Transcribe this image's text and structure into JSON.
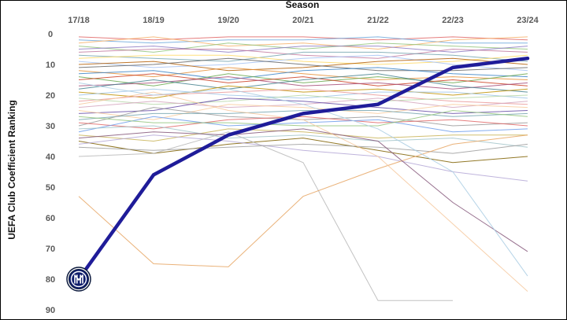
{
  "chart_data": {
    "type": "line",
    "title": "",
    "xlabel": "Season",
    "ylabel": "UEFA Club Coefficient Ranking",
    "x": [
      "17/18",
      "18/19",
      "19/20",
      "20/21",
      "21/22",
      "22/23",
      "23/24"
    ],
    "yticks": [
      0,
      10,
      20,
      30,
      40,
      50,
      60,
      70,
      80,
      90
    ],
    "ylim": [
      0,
      90
    ],
    "y_inverted": true,
    "x_axis_position": "top",
    "grid": false,
    "legend": "none",
    "highlight": {
      "values": [
        80,
        46,
        33,
        26,
        23,
        11,
        8
      ],
      "color": "#1f1c99",
      "marker": "inter-logo-icon"
    },
    "series": [
      {
        "values": [
          1,
          2,
          1,
          1,
          2,
          1,
          2
        ],
        "color": "#e06666"
      },
      {
        "values": [
          2,
          3,
          2,
          2,
          1,
          3,
          3
        ],
        "color": "#6fa8dc"
      },
      {
        "values": [
          3,
          1,
          4,
          3,
          5,
          2,
          1
        ],
        "color": "#f6b26b"
      },
      {
        "values": [
          4,
          6,
          3,
          5,
          3,
          4,
          5
        ],
        "color": "#93c47d"
      },
      {
        "values": [
          5,
          4,
          6,
          4,
          4,
          6,
          4
        ],
        "color": "#8e7cc3"
      },
      {
        "values": [
          6,
          5,
          5,
          7,
          8,
          5,
          6
        ],
        "color": "#c27ba0"
      },
      {
        "values": [
          7,
          8,
          9,
          6,
          6,
          7,
          9
        ],
        "color": "#76a5af"
      },
      {
        "values": [
          8,
          7,
          7,
          9,
          10,
          9,
          7
        ],
        "color": "#ffd966"
      },
      {
        "values": [
          9,
          11,
          10,
          8,
          7,
          10,
          12
        ],
        "color": "#a4c2f4"
      },
      {
        "values": [
          10,
          9,
          12,
          11,
          9,
          8,
          10
        ],
        "color": "#b45f06"
      },
      {
        "values": [
          11,
          10,
          8,
          10,
          12,
          12,
          11
        ],
        "color": "#666666"
      },
      {
        "values": [
          12,
          14,
          11,
          13,
          15,
          14,
          15
        ],
        "color": "#e69138"
      },
      {
        "values": [
          13,
          12,
          15,
          12,
          11,
          13,
          14
        ],
        "color": "#3d85c6"
      },
      {
        "values": [
          14,
          17,
          13,
          16,
          14,
          16,
          13
        ],
        "color": "#6aa84f"
      },
      {
        "values": [
          15,
          13,
          16,
          14,
          17,
          15,
          17
        ],
        "color": "#cc4125"
      },
      {
        "values": [
          17,
          16,
          14,
          17,
          16,
          18,
          16
        ],
        "color": "#a64d79"
      },
      {
        "values": [
          18,
          15,
          18,
          15,
          13,
          17,
          19
        ],
        "color": "#45818e"
      },
      {
        "values": [
          19,
          21,
          17,
          19,
          18,
          20,
          18
        ],
        "color": "#bf9000"
      },
      {
        "values": [
          20,
          18,
          20,
          21,
          19,
          19,
          21
        ],
        "color": "#9fc5e8"
      },
      {
        "values": [
          22,
          20,
          19,
          18,
          20,
          22,
          23
        ],
        "color": "#ea9999"
      },
      {
        "values": [
          21,
          23,
          22,
          20,
          22,
          21,
          20
        ],
        "color": "#b6d7a8"
      },
      {
        "values": [
          24,
          22,
          24,
          23,
          21,
          24,
          22
        ],
        "color": "#d5a6bd"
      },
      {
        "values": [
          26,
          25,
          21,
          22,
          24,
          26,
          25
        ],
        "color": "#674ea7"
      },
      {
        "values": [
          25,
          28,
          23,
          24,
          26,
          23,
          24
        ],
        "color": "#f9cb9c"
      },
      {
        "values": [
          28,
          26,
          26,
          25,
          25,
          27,
          26
        ],
        "color": "#76a5af"
      },
      {
        "values": [
          30,
          24,
          27,
          28,
          27,
          30,
          29
        ],
        "color": "#999999"
      },
      {
        "values": [
          29,
          31,
          28,
          27,
          29,
          28,
          30
        ],
        "color": "#e06666"
      },
      {
        "values": [
          32,
          27,
          30,
          29,
          28,
          32,
          31
        ],
        "color": "#6d9eeb"
      },
      {
        "values": [
          27,
          29,
          29,
          30,
          30,
          25,
          27
        ],
        "color": "#93c47d"
      },
      {
        "values": [
          33,
          35,
          31,
          32,
          34,
          33,
          33
        ],
        "color": "#c9b458"
      },
      {
        "values": [
          31,
          30,
          34,
          33,
          35,
          34,
          37
        ],
        "color": "#a2c4c9"
      },
      {
        "values": [
          35,
          39,
          36,
          34,
          38,
          42,
          40
        ],
        "color": "#7f6000"
      },
      {
        "values": [
          36,
          33,
          35,
          38,
          40,
          45,
          48
        ],
        "color": "#b4a7d6"
      },
      {
        "values": [
          37,
          38,
          37,
          36,
          37,
          39,
          36
        ],
        "color": "#9e9e9e"
      },
      {
        "values": [
          40,
          39,
          32,
          42,
          87,
          87,
          null
        ],
        "color": "#b7b7b7"
      },
      {
        "values": [
          53,
          75,
          76,
          53,
          44,
          36,
          33
        ],
        "color": "#e6a461"
      },
      {
        "values": [
          34,
          32,
          33,
          31,
          35,
          55,
          71
        ],
        "color": "#85577a"
      },
      {
        "values": [
          23,
          19,
          25,
          28,
          40,
          62,
          84
        ],
        "color": "#f6c89e"
      },
      {
        "values": [
          16,
          20,
          18,
          23,
          31,
          45,
          79
        ],
        "color": "#a9cce3"
      }
    ]
  }
}
